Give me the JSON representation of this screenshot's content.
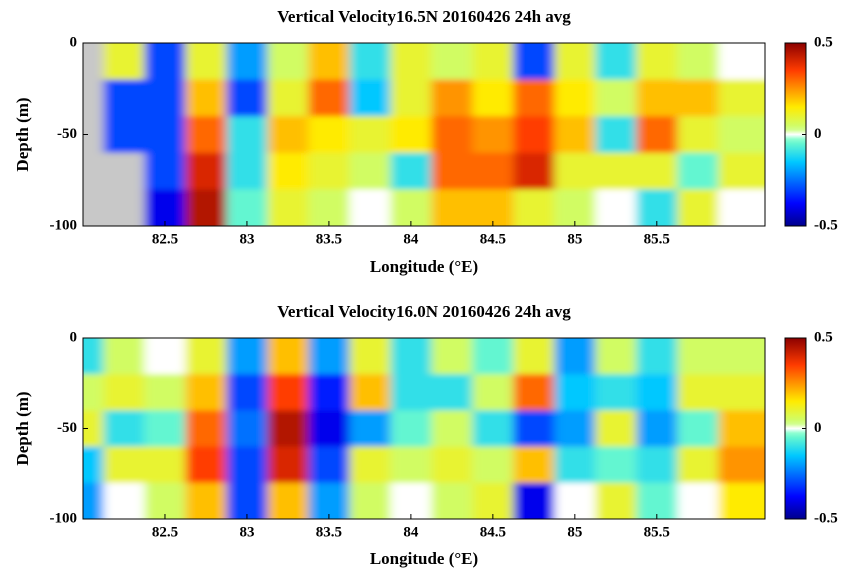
{
  "chart_data": [
    {
      "type": "heatmap",
      "title": "Vertical Velocity16.5N 20160426  24h avg",
      "xlabel": "Longitude (°E)",
      "ylabel": "Depth (m)",
      "x": [
        82.0,
        82.25,
        82.5,
        82.75,
        83.0,
        83.25,
        83.5,
        83.75,
        84.0,
        84.25,
        84.5,
        84.75,
        85.0,
        85.25,
        85.5,
        85.75,
        86.0
      ],
      "y": [
        -10,
        -30,
        -50,
        -70,
        -90
      ],
      "z": [
        [
          null,
          0.1,
          -0.3,
          0.1,
          -0.2,
          0.05,
          0.2,
          -0.1,
          0.1,
          0.05,
          0.1,
          -0.3,
          0.1,
          -0.1,
          0.1,
          0.05,
          0
        ],
        [
          null,
          -0.3,
          -0.3,
          0.2,
          -0.3,
          0.1,
          0.3,
          -0.15,
          0.1,
          0.25,
          0.15,
          0.3,
          0.15,
          0.05,
          0.2,
          0.2,
          0.1
        ],
        [
          null,
          -0.3,
          -0.3,
          0.3,
          -0.1,
          0.2,
          0.15,
          0.1,
          0.15,
          0.3,
          0.25,
          0.35,
          0.2,
          -0.1,
          0.3,
          0.1,
          0.05
        ],
        [
          null,
          null,
          -0.3,
          0.4,
          -0.1,
          0.15,
          0.1,
          0.05,
          -0.1,
          0.3,
          0.3,
          0.4,
          0.1,
          0.1,
          0.1,
          -0.05,
          0.1
        ],
        [
          null,
          null,
          -0.4,
          0.45,
          -0.05,
          0.1,
          0.05,
          0,
          0.05,
          0.2,
          0.2,
          0.1,
          0.05,
          0,
          -0.1,
          0.1,
          0
        ]
      ],
      "xlim": [
        82.0,
        86.16
      ],
      "ylim": [
        -100,
        0
      ],
      "xticks": [
        82.5,
        83,
        83.5,
        84,
        84.5,
        85,
        85.5
      ],
      "yticks": [
        0,
        -50,
        -100
      ],
      "colormap": "jet",
      "nan_color": "#c8c8c8",
      "clim": [
        -0.5,
        0.5
      ],
      "cticks": [
        0.5,
        0,
        -0.5
      ]
    },
    {
      "type": "heatmap",
      "title": "Vertical Velocity16.0N 20160426  24h avg",
      "xlabel": "Longitude (°E)",
      "ylabel": "Depth (m)",
      "x": [
        82.0,
        82.25,
        82.5,
        82.75,
        83.0,
        83.25,
        83.5,
        83.75,
        84.0,
        84.25,
        84.5,
        84.75,
        85.0,
        85.25,
        85.5,
        85.75,
        86.0
      ],
      "y": [
        -10,
        -30,
        -50,
        -70,
        -90
      ],
      "z": [
        [
          -0.1,
          0.05,
          0,
          0.1,
          -0.2,
          0.2,
          -0.2,
          0.1,
          -0.1,
          0.05,
          -0.05,
          0.1,
          -0.2,
          0.05,
          -0.1,
          0.05,
          0.05
        ],
        [
          0.05,
          0.1,
          0.05,
          0.2,
          -0.3,
          0.35,
          -0.35,
          0.2,
          -0.1,
          -0.1,
          0.05,
          0.3,
          -0.15,
          -0.1,
          -0.15,
          0.1,
          0.1
        ],
        [
          0.1,
          -0.1,
          -0.05,
          0.3,
          -0.25,
          0.45,
          -0.4,
          -0.2,
          -0.05,
          0.05,
          -0.1,
          -0.3,
          -0.2,
          0.1,
          -0.2,
          -0.05,
          0.2
        ],
        [
          -0.15,
          0.1,
          0.1,
          0.35,
          -0.3,
          0.4,
          -0.3,
          0.1,
          0.05,
          0.1,
          0.05,
          0.2,
          -0.1,
          -0.05,
          -0.1,
          0.1,
          0.25
        ],
        [
          -0.2,
          0,
          0.05,
          0.2,
          -0.3,
          0.2,
          -0.2,
          0.05,
          0,
          0.05,
          0.1,
          -0.4,
          0,
          0.1,
          -0.05,
          0,
          0.15
        ]
      ],
      "xlim": [
        82.0,
        86.16
      ],
      "ylim": [
        -100,
        0
      ],
      "xticks": [
        82.5,
        83,
        83.5,
        84,
        84.5,
        85,
        85.5
      ],
      "yticks": [
        0,
        -50,
        -100
      ],
      "colormap": "jet",
      "nan_color": "#c8c8c8",
      "clim": [
        -0.5,
        0.5
      ],
      "cticks": [
        0.5,
        0,
        -0.5
      ]
    }
  ]
}
